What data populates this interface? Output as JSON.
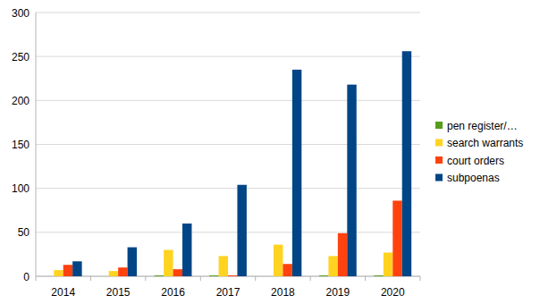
{
  "chart_data": {
    "type": "bar",
    "categories": [
      "2014",
      "2015",
      "2016",
      "2017",
      "2018",
      "2019",
      "2020"
    ],
    "series": [
      {
        "name": "pen register/…",
        "color": "#579d1c",
        "values": [
          0,
          0,
          1,
          1,
          0,
          1,
          1
        ]
      },
      {
        "name": "search warrants",
        "color": "#ffd320",
        "values": [
          7,
          6,
          30,
          23,
          36,
          23,
          27
        ]
      },
      {
        "name": "court orders",
        "color": "#ff420e",
        "values": [
          13,
          10,
          8,
          1,
          14,
          49,
          86
        ]
      },
      {
        "name": "subpoenas",
        "color": "#004586",
        "values": [
          17,
          33,
          60,
          104,
          235,
          218,
          256
        ]
      }
    ],
    "ylim": [
      0,
      300
    ],
    "yticks": [
      0,
      50,
      100,
      150,
      200,
      250,
      300
    ],
    "grid": true,
    "legend": "right"
  }
}
